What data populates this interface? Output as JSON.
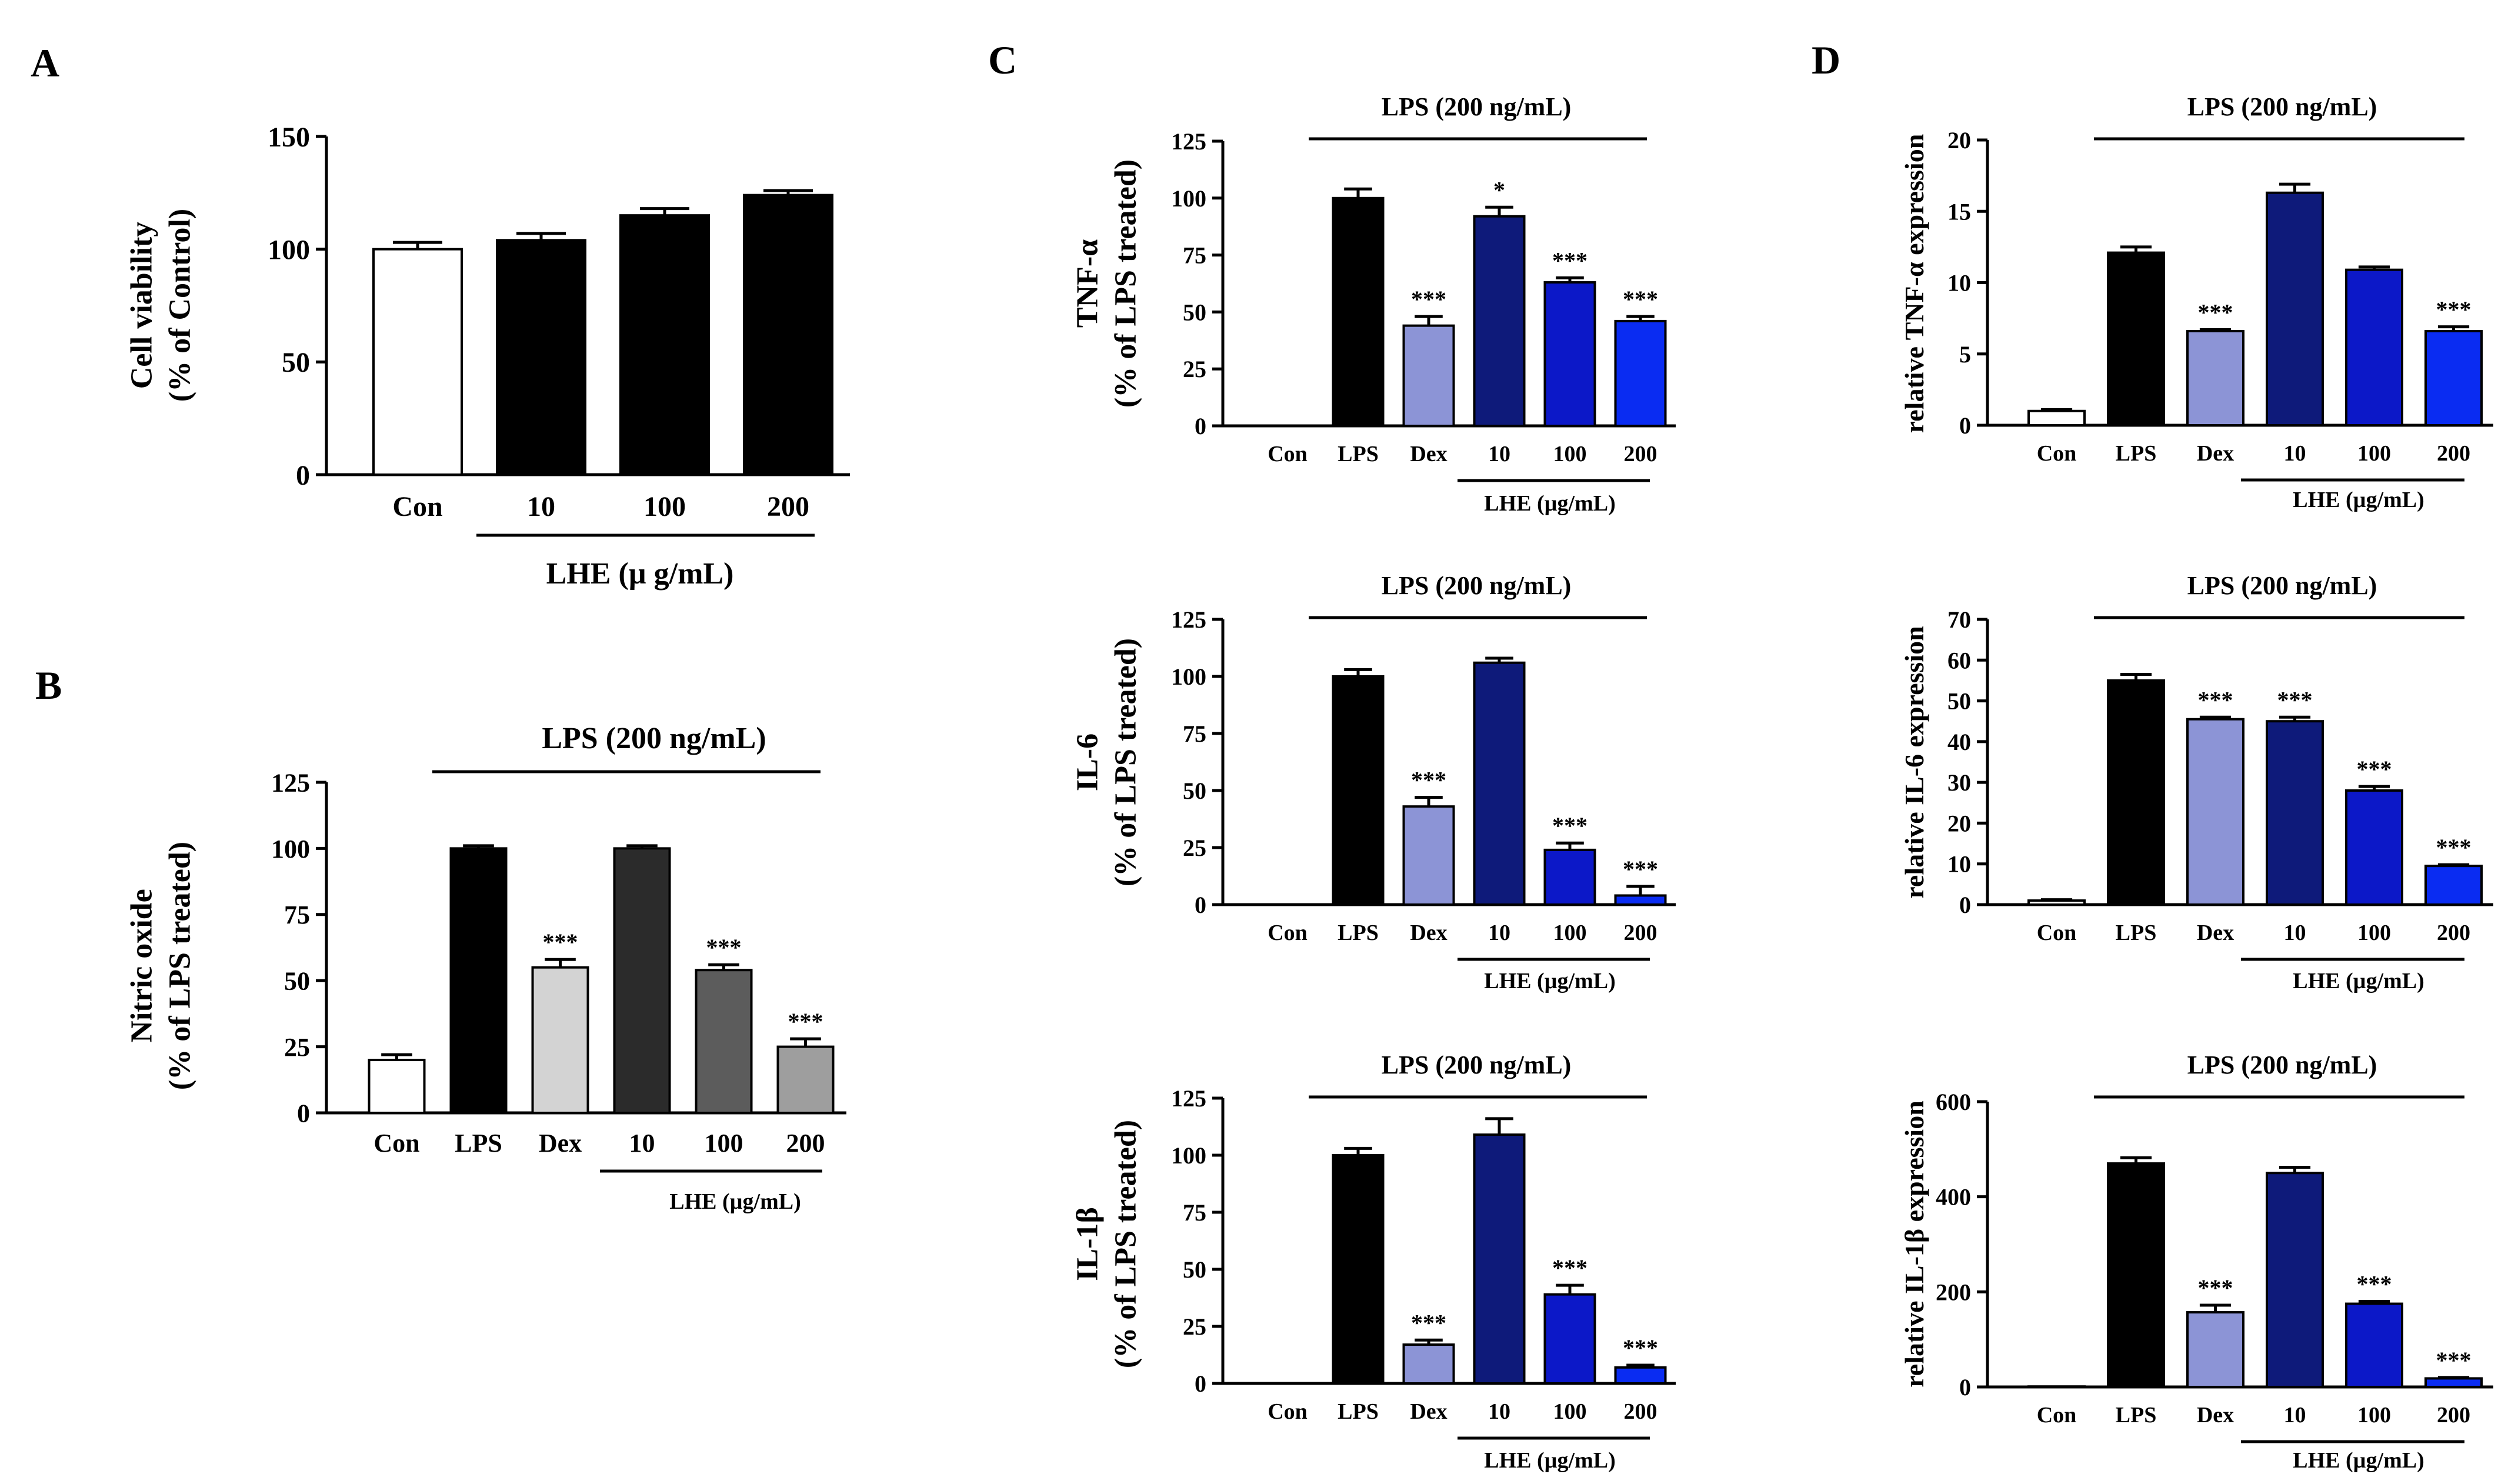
{
  "colors": {
    "white": "#ffffff",
    "black": "#000000",
    "nitric_10": "#2b2b2b",
    "nitric_100": "#5c5c5c",
    "nitric_200": "#9e9e9e",
    "dex_light_gray": "#d3d3d3",
    "dex_lavender": "#8c94d6",
    "navy": "#0e1a7a",
    "medium_blue": "#0c18c8",
    "bright_blue": "#0a2cf2"
  },
  "labels": {
    "lps_bracket": "LPS (200 ng/mL)",
    "lhe_bracket": "LHE (µg/mL)",
    "lhe_bracket_a": "LHE (µ g/mL)"
  },
  "chart_data": [
    {
      "panel": "A",
      "type": "bar",
      "ylabel": [
        "Cell viability",
        "(% of Control)"
      ],
      "ylim": [
        0,
        150
      ],
      "yticks": [
        0,
        50,
        100,
        150
      ],
      "categories": [
        "Con",
        "10",
        "100",
        "200"
      ],
      "values": [
        100,
        104,
        115,
        124
      ],
      "errors": [
        3,
        3,
        3,
        2
      ],
      "significance": [
        "",
        "",
        "",
        ""
      ],
      "colors": [
        "#ffffff",
        "#000000",
        "#000000",
        "#000000"
      ],
      "lhe_range": [
        1,
        3
      ]
    },
    {
      "panel": "B",
      "type": "bar",
      "ylabel": [
        "Nitric oxide",
        "(% of LPS treated)"
      ],
      "ylim": [
        0,
        125
      ],
      "yticks": [
        0,
        25,
        50,
        75,
        100,
        125
      ],
      "categories": [
        "Con",
        "LPS",
        "Dex",
        "10",
        "100",
        "200"
      ],
      "values": [
        20,
        100,
        55,
        100,
        54,
        25
      ],
      "errors": [
        2,
        1,
        3,
        1,
        2,
        3
      ],
      "significance": [
        "",
        "",
        "***",
        "",
        "***",
        "***"
      ],
      "colors": [
        "#ffffff",
        "#000000",
        "#d3d3d3",
        "#2b2b2b",
        "#5c5c5c",
        "#9e9e9e"
      ],
      "lhe_range": [
        3,
        5
      ],
      "lps_range": [
        1,
        5
      ]
    },
    {
      "panel": "C",
      "type": "bar",
      "ylabel": [
        "TNF-α",
        "(% of LPS treated)"
      ],
      "ylim": [
        0,
        125
      ],
      "yticks": [
        0,
        25,
        50,
        75,
        100,
        125
      ],
      "categories": [
        "Con",
        "LPS",
        "Dex",
        "10",
        "100",
        "200"
      ],
      "values": [
        0,
        100,
        44,
        92,
        63,
        46
      ],
      "errors": [
        0,
        4,
        4,
        4,
        2,
        2
      ],
      "significance": [
        "",
        "",
        "***",
        "*",
        "***",
        "***"
      ],
      "colors": [
        "#ffffff",
        "#000000",
        "#8c94d6",
        "#0e1a7a",
        "#0c18c8",
        "#0a2cf2"
      ],
      "lhe_range": [
        3,
        5
      ],
      "lps_range": [
        1,
        5
      ]
    },
    {
      "panel": "",
      "type": "bar",
      "ylabel": [
        "IL-6",
        "(% of LPS treated)"
      ],
      "ylim": [
        0,
        125
      ],
      "yticks": [
        0,
        25,
        50,
        75,
        100,
        125
      ],
      "categories": [
        "Con",
        "LPS",
        "Dex",
        "10",
        "100",
        "200"
      ],
      "values": [
        0,
        100,
        43,
        106,
        24,
        4
      ],
      "errors": [
        0,
        3,
        4,
        2,
        3,
        4
      ],
      "significance": [
        "",
        "",
        "***",
        "",
        "***",
        "***"
      ],
      "colors": [
        "#ffffff",
        "#000000",
        "#8c94d6",
        "#0e1a7a",
        "#0c18c8",
        "#0a2cf2"
      ],
      "lhe_range": [
        3,
        5
      ],
      "lps_range": [
        1,
        5
      ]
    },
    {
      "panel": "",
      "type": "bar",
      "ylabel": [
        "IL-1β",
        "(% of LPS treated)"
      ],
      "ylim": [
        0,
        125
      ],
      "yticks": [
        0,
        25,
        50,
        75,
        100,
        125
      ],
      "categories": [
        "Con",
        "LPS",
        "Dex",
        "10",
        "100",
        "200"
      ],
      "values": [
        0,
        100,
        17,
        109,
        39,
        7
      ],
      "errors": [
        0,
        3,
        2,
        7,
        4,
        1
      ],
      "significance": [
        "",
        "",
        "***",
        "",
        "***",
        "***"
      ],
      "colors": [
        "#ffffff",
        "#000000",
        "#8c94d6",
        "#0e1a7a",
        "#0c18c8",
        "#0a2cf2"
      ],
      "lhe_range": [
        3,
        5
      ],
      "lps_range": [
        1,
        5
      ]
    },
    {
      "panel": "D",
      "type": "bar",
      "ylabel": [
        "relative TNF-α expression"
      ],
      "ylim": [
        0,
        20
      ],
      "yticks": [
        0,
        5,
        10,
        15,
        20
      ],
      "categories": [
        "Con",
        "LPS",
        "Dex",
        "10",
        "100",
        "200"
      ],
      "values": [
        1,
        12.1,
        6.6,
        16.3,
        10.9,
        6.6
      ],
      "errors": [
        0.1,
        0.4,
        0.1,
        0.6,
        0.2,
        0.3
      ],
      "significance": [
        "",
        "",
        "***",
        "",
        "",
        "***"
      ],
      "colors": [
        "#ffffff",
        "#000000",
        "#8c94d6",
        "#0e1a7a",
        "#0c18c8",
        "#0a2cf2"
      ],
      "lhe_range": [
        3,
        5
      ],
      "lps_range": [
        1,
        5
      ]
    },
    {
      "panel": "",
      "type": "bar",
      "ylabel": [
        "relative IL-6 expression"
      ],
      "ylim": [
        0,
        70
      ],
      "yticks": [
        0,
        10,
        20,
        30,
        40,
        50,
        60,
        70
      ],
      "categories": [
        "Con",
        "LPS",
        "Dex",
        "10",
        "100",
        "200"
      ],
      "values": [
        1,
        55,
        45.5,
        45,
        28,
        9.5
      ],
      "errors": [
        0.2,
        1.5,
        0.5,
        1,
        1,
        0.3
      ],
      "significance": [
        "",
        "",
        "***",
        "***",
        "***",
        "***"
      ],
      "colors": [
        "#ffffff",
        "#000000",
        "#8c94d6",
        "#0e1a7a",
        "#0c18c8",
        "#0a2cf2"
      ],
      "lhe_range": [
        3,
        5
      ],
      "lps_range": [
        1,
        5
      ]
    },
    {
      "panel": "",
      "type": "bar",
      "ylabel": [
        "relative IL-1β expression"
      ],
      "ylim": [
        0,
        600
      ],
      "yticks": [
        0,
        200,
        400,
        600
      ],
      "categories": [
        "Con",
        "LPS",
        "Dex",
        "10",
        "100",
        "200"
      ],
      "values": [
        1,
        470,
        157,
        450,
        175,
        18
      ],
      "errors": [
        0,
        12,
        15,
        12,
        5,
        2
      ],
      "significance": [
        "",
        "",
        "***",
        "",
        "***",
        "***"
      ],
      "colors": [
        "#ffffff",
        "#000000",
        "#8c94d6",
        "#0e1a7a",
        "#0c18c8",
        "#0a2cf2"
      ],
      "lhe_range": [
        3,
        5
      ],
      "lps_range": [
        1,
        5
      ]
    }
  ]
}
